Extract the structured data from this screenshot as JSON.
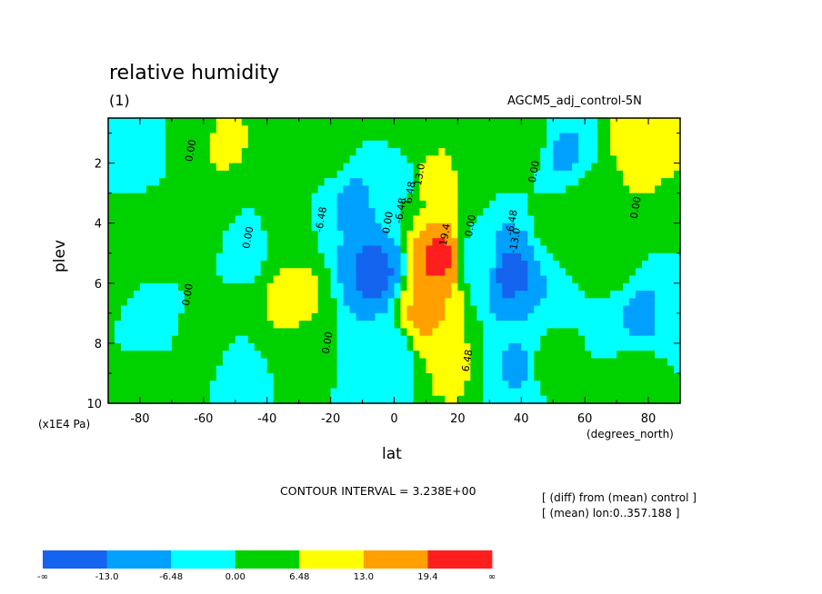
{
  "header": {
    "title": "relative humidity",
    "subtitle": "(1)",
    "run_label": "AGCM5_adj_control-5N"
  },
  "footer": {
    "contour_interval": "CONTOUR INTERVAL = 3.238E+00",
    "annotation_1": "[ (diff) from (mean) control ]",
    "annotation_2": "[ (mean) lon:0..357.188 ]"
  },
  "chart_data": {
    "type": "heatmap",
    "title": "relative humidity",
    "xlabel": "lat",
    "ylabel": "plev",
    "x_unit": "(degrees_north)",
    "y_unit": "(x1E4 Pa)",
    "xlim": [
      -90,
      90
    ],
    "ylim": [
      10,
      0.5
    ],
    "x_ticks": [
      -80,
      -60,
      -40,
      -20,
      0,
      20,
      40,
      60,
      80
    ],
    "x_tick_labels": [
      "-80",
      "-60",
      "-40",
      "-20",
      "0",
      "20",
      "40",
      "60",
      "80"
    ],
    "y_ticks": [
      2,
      4,
      6,
      8,
      10
    ],
    "y_tick_labels": [
      "2",
      "4",
      "6",
      "8",
      "10"
    ],
    "contour_interval": 3.238,
    "levels": [
      -13.0,
      -6.48,
      0.0,
      6.48,
      13.0,
      19.4
    ],
    "colorbar": {
      "labels": [
        "-∞",
        "-13.0",
        "-6.48",
        "0.00",
        "6.48",
        "13.0",
        "19.4",
        "∞"
      ],
      "colors": [
        "#1464f0",
        "#00a0ff",
        "#00ffff",
        "#00d200",
        "#ffff00",
        "#ffa000",
        "#ff1e1e"
      ]
    },
    "contour_labels": [
      {
        "text": "0.00",
        "x": -63,
        "y": 1.6
      },
      {
        "text": "0.00",
        "x": -45,
        "y": 4.5
      },
      {
        "text": "0.00",
        "x": -64,
        "y": 6.4
      },
      {
        "text": "-6.48",
        "x": -22,
        "y": 3.9
      },
      {
        "text": "0.00",
        "x": -20,
        "y": 8.0
      },
      {
        "text": "0.00",
        "x": -1,
        "y": 4.0
      },
      {
        "text": "-6.48",
        "x": 3,
        "y": 3.6
      },
      {
        "text": "6.48",
        "x": 6,
        "y": 3.0
      },
      {
        "text": "13.0",
        "x": 9,
        "y": 2.4
      },
      {
        "text": "19.4",
        "x": 17,
        "y": 4.4
      },
      {
        "text": "0.00",
        "x": 25,
        "y": 4.1
      },
      {
        "text": "6.48",
        "x": 24,
        "y": 8.6
      },
      {
        "text": "-6.48",
        "x": 38,
        "y": 4.0
      },
      {
        "text": "-13.0",
        "x": 39,
        "y": 4.6
      },
      {
        "text": "0.00",
        "x": 45,
        "y": 2.3
      },
      {
        "text": "0.00",
        "x": 77,
        "y": 3.5
      }
    ],
    "field": [
      {
        "x": -83,
        "y": 1.5,
        "value": -5
      },
      {
        "x": -90,
        "y": 4.5,
        "value": 3
      },
      {
        "x": -77,
        "y": 4.3,
        "value": 3
      },
      {
        "x": -75,
        "y": 7.2,
        "value": -1
      },
      {
        "x": -75,
        "y": 9.4,
        "value": 1
      },
      {
        "x": -60,
        "y": 1.2,
        "value": 3
      },
      {
        "x": -56,
        "y": 1.3,
        "value": 8
      },
      {
        "x": -60,
        "y": 3.7,
        "value": 2
      },
      {
        "x": -62,
        "y": 8.0,
        "value": 1
      },
      {
        "x": -47,
        "y": 4.8,
        "value": -1
      },
      {
        "x": -47,
        "y": 9.2,
        "value": -1
      },
      {
        "x": -32,
        "y": 6.6,
        "value": 9
      },
      {
        "x": -34,
        "y": 4.0,
        "value": 1
      },
      {
        "x": -30,
        "y": 8.4,
        "value": 1
      },
      {
        "x": -22,
        "y": 1.5,
        "value": 3
      },
      {
        "x": -13,
        "y": 3.3,
        "value": -7
      },
      {
        "x": -6,
        "y": 5.6,
        "value": -14
      },
      {
        "x": -2,
        "y": 8.6,
        "value": -6
      },
      {
        "x": 3,
        "y": 2.3,
        "value": -2
      },
      {
        "x": 9,
        "y": 1.6,
        "value": 5
      },
      {
        "x": 12,
        "y": 2.3,
        "value": 10
      },
      {
        "x": 10,
        "y": 7.0,
        "value": 14
      },
      {
        "x": 14,
        "y": 5.2,
        "value": 20
      },
      {
        "x": 17,
        "y": 8.7,
        "value": 7
      },
      {
        "x": 22,
        "y": 1.3,
        "value": 3
      },
      {
        "x": 27,
        "y": 5.2,
        "value": -3
      },
      {
        "x": 36,
        "y": 5.6,
        "value": -14
      },
      {
        "x": 40,
        "y": 8.8,
        "value": -7
      },
      {
        "x": 43,
        "y": 1.2,
        "value": 3
      },
      {
        "x": 53,
        "y": 1.6,
        "value": -7
      },
      {
        "x": 52,
        "y": 4.0,
        "value": 2
      },
      {
        "x": 48,
        "y": 8.8,
        "value": 2
      },
      {
        "x": 62,
        "y": 3.3,
        "value": 2
      },
      {
        "x": 70,
        "y": 5.2,
        "value": 2
      },
      {
        "x": 78,
        "y": 7.0,
        "value": -7
      },
      {
        "x": 78,
        "y": 9.4,
        "value": 4
      },
      {
        "x": 80,
        "y": 1.5,
        "value": 13
      },
      {
        "x": 90,
        "y": 3.5,
        "value": 3
      },
      {
        "x": 90,
        "y": 7.0,
        "value": -5
      }
    ]
  }
}
